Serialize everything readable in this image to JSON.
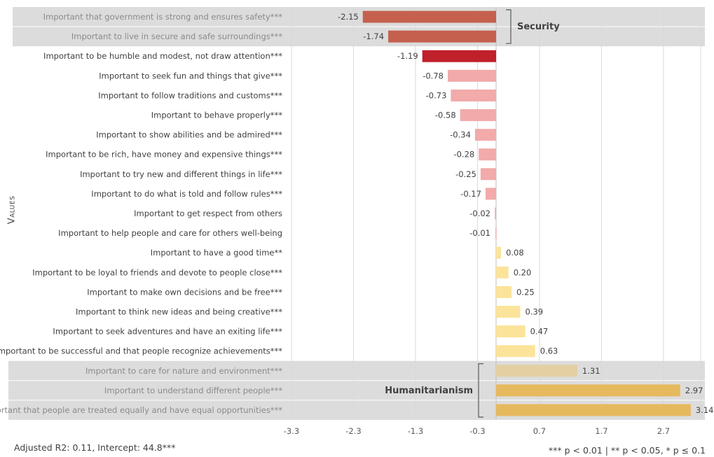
{
  "chart_data": {
    "type": "bar",
    "orientation": "horizontal",
    "ylabel": "Values",
    "xlim": [
      -3.3,
      3.3
    ],
    "x_ticks": [
      -3.3,
      -2.3,
      -1.3,
      -0.3,
      0.7,
      1.7,
      2.7
    ],
    "x_tick_labels": [
      "-3.3",
      "-2.3",
      "-1.3",
      "-0.3",
      "0.7",
      "1.7",
      "2.7"
    ],
    "grid": "vertical",
    "categories": [
      "Important that government is strong and ensures safety***",
      "Important to live in secure and safe surroundings***",
      "Important to be humble and modest, not draw attention***",
      "Important to seek fun and things that give***",
      "Important to follow traditions and customs***",
      "Important to behave properly***",
      "Important to show abilities and be admired***",
      "Important to be rich, have money and expensive things***",
      "Important to try new and different things in life***",
      "Important to do what is told and follow rules***",
      "Important to get respect from others",
      "Important to help people and care for others well-being",
      "Important to have a good time**",
      "Important to be loyal to friends and devote to people close***",
      "Important to make own decisions and be free***",
      "Important to think new ideas and being creative***",
      "Important to seek adventures and have an exiting life***",
      "Important to be successful and that people recognize achievements***",
      "Important to care for nature and environment***",
      "Important to understand different people***",
      "Important that people are treated equally and have equal opportunities***"
    ],
    "values": [
      -2.15,
      -1.74,
      -1.19,
      -0.78,
      -0.73,
      -0.58,
      -0.34,
      -0.28,
      -0.25,
      -0.17,
      -0.02,
      -0.01,
      0.08,
      0.2,
      0.25,
      0.39,
      0.47,
      0.63,
      1.31,
      2.97,
      3.14
    ],
    "value_labels": [
      "-2.15",
      "-1.74",
      "-1.19",
      "-0.78",
      "-0.73",
      "-0.58",
      "-0.34",
      "-0.28",
      "-0.25",
      "-0.17",
      "-0.02",
      "-0.01",
      "0.08",
      "0.20",
      "0.25",
      "0.39",
      "0.47",
      "0.63",
      "1.31",
      "2.97",
      "3.14"
    ],
    "bar_colors": [
      "#c5604f",
      "#c5604f",
      "#c0202a",
      "#f2aaaa",
      "#f2aaaa",
      "#f2aaaa",
      "#f2aaaa",
      "#f2aaaa",
      "#f2aaaa",
      "#f2aaaa",
      "#f2aaaa",
      "#f2aaaa",
      "#fbe39a",
      "#fbe39a",
      "#fbe39a",
      "#fbe39a",
      "#fbe39a",
      "#fbe39a",
      "#e3cfa2",
      "#e6b95e",
      "#e6b95e"
    ],
    "label_colors": [
      "#8a8a8a",
      "#8a8a8a",
      "#404040",
      "#404040",
      "#404040",
      "#404040",
      "#404040",
      "#404040",
      "#404040",
      "#404040",
      "#404040",
      "#404040",
      "#404040",
      "#404040",
      "#404040",
      "#404040",
      "#404040",
      "#404040",
      "#8a8a8a",
      "#8a8a8a",
      "#8a8a8a"
    ],
    "groups": [
      {
        "label": "Security",
        "first": 0,
        "last": 1,
        "side": "right"
      },
      {
        "label": "Humanitarianism",
        "first": 18,
        "last": 20,
        "side": "left"
      }
    ],
    "group_band_color": "#dcdcdc"
  },
  "footer": {
    "left": "Adjusted R2: 0.11, Intercept: 44.8***",
    "right": "*** p < 0.01 | ** p < 0.05, * p ≤ 0.1"
  }
}
